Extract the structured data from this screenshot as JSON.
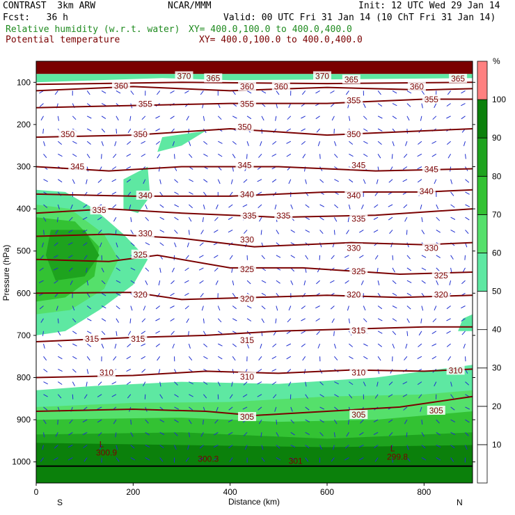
{
  "header": {
    "model": "CONTRAST  3km ARW",
    "org": "NCAR/MMM",
    "init": "Init: 12 UTC Wed 29 Jan 14",
    "fcst": "Fcst:   36 h",
    "valid": "Valid: 00 UTC Fri 31 Jan 14 (10 ChT Fri 31 Jan 14)",
    "field1_name": "Relative humidity (w.r.t. water)",
    "field1_xy": "XY= 400.0,100.0 to 400.0,400.0",
    "field2_name": "Potential temperature",
    "field2_xy": "XY= 400.0,100.0 to 400.0,400.0"
  },
  "colors": {
    "rh_levels": [
      "#5ee8a2",
      "#55e06b",
      "#33c233",
      "#1ea31e",
      "#0b800b",
      "#c9ffc9",
      "#ff8080"
    ],
    "isentrope": "#7a0000",
    "wind": "#1f2fd0",
    "top_band": "#7a0000"
  },
  "chart_data": {
    "type": "heatmap",
    "title": "",
    "xlabel": "Distance (km)",
    "ylabel": "Pressure (hPa)",
    "xlim": [
      0,
      900
    ],
    "ylim": [
      1050,
      50
    ],
    "x_ticks": [
      "0",
      "200",
      "400",
      "600",
      "800"
    ],
    "y_ticks": [
      "100",
      "200",
      "300",
      "400",
      "500",
      "600",
      "700",
      "800",
      "900",
      "1000"
    ],
    "x_end_labels": {
      "left": "S",
      "right": "N"
    },
    "colorbar": {
      "unit": "%",
      "levels": [
        "10",
        "20",
        "30",
        "40",
        "50",
        "60",
        "70",
        "80",
        "90",
        "100"
      ]
    },
    "rh_regions": [
      {
        "level": 50,
        "points": [
          [
            0,
            1050
          ],
          [
            0,
            830
          ],
          [
            120,
            820
          ],
          [
            300,
            810
          ],
          [
            500,
            815
          ],
          [
            700,
            800
          ],
          [
            900,
            770
          ],
          [
            900,
            1050
          ]
        ]
      },
      {
        "level": 60,
        "points": [
          [
            0,
            1050
          ],
          [
            0,
            870
          ],
          [
            200,
            860
          ],
          [
            400,
            858
          ],
          [
            600,
            845
          ],
          [
            800,
            840
          ],
          [
            900,
            830
          ],
          [
            900,
            1050
          ]
        ]
      },
      {
        "level": 70,
        "points": [
          [
            0,
            1050
          ],
          [
            0,
            900
          ],
          [
            300,
            895
          ],
          [
            500,
            905
          ],
          [
            700,
            900
          ],
          [
            900,
            880
          ],
          [
            900,
            1050
          ]
        ]
      },
      {
        "level": 80,
        "points": [
          [
            0,
            1050
          ],
          [
            0,
            935
          ],
          [
            300,
            930
          ],
          [
            600,
            945
          ],
          [
            900,
            930
          ],
          [
            900,
            1050
          ]
        ]
      },
      {
        "level": 90,
        "points": [
          [
            0,
            1050
          ],
          [
            0,
            955
          ],
          [
            300,
            960
          ],
          [
            600,
            965
          ],
          [
            900,
            960
          ],
          [
            900,
            1050
          ]
        ]
      },
      {
        "level": 50,
        "points": [
          [
            0,
            355
          ],
          [
            60,
            360
          ],
          [
            120,
            400
          ],
          [
            180,
            460
          ],
          [
            230,
            520
          ],
          [
            200,
            580
          ],
          [
            130,
            640
          ],
          [
            60,
            690
          ],
          [
            0,
            700
          ]
        ]
      },
      {
        "level": 60,
        "points": [
          [
            0,
            390
          ],
          [
            70,
            400
          ],
          [
            140,
            460
          ],
          [
            170,
            520
          ],
          [
            140,
            590
          ],
          [
            70,
            640
          ],
          [
            0,
            650
          ]
        ]
      },
      {
        "level": 70,
        "points": [
          [
            0,
            420
          ],
          [
            80,
            430
          ],
          [
            130,
            490
          ],
          [
            120,
            560
          ],
          [
            60,
            610
          ],
          [
            0,
            620
          ]
        ]
      },
      {
        "level": 80,
        "points": [
          [
            30,
            450
          ],
          [
            100,
            450
          ],
          [
            130,
            510
          ],
          [
            100,
            560
          ],
          [
            40,
            570
          ],
          [
            20,
            510
          ]
        ]
      },
      {
        "level": 50,
        "points": [
          [
            180,
            330
          ],
          [
            230,
            300
          ],
          [
            235,
            370
          ],
          [
            210,
            410
          ],
          [
            180,
            400
          ]
        ]
      },
      {
        "level": 50,
        "points": [
          [
            260,
            230
          ],
          [
            350,
            215
          ],
          [
            300,
            250
          ],
          [
            250,
            265
          ]
        ]
      },
      {
        "level": 50,
        "points": [
          [
            0,
            100
          ],
          [
            130,
            95
          ],
          [
            260,
            90
          ],
          [
            400,
            95
          ],
          [
            700,
            92
          ],
          [
            900,
            90
          ],
          [
            900,
            80
          ],
          [
            0,
            80
          ]
        ]
      },
      {
        "level": 50,
        "points": [
          [
            880,
            660
          ],
          [
            900,
            650
          ],
          [
            900,
            690
          ],
          [
            870,
            690
          ]
        ]
      }
    ],
    "isentropes": [
      {
        "theta": 305,
        "points": [
          [
            0,
            880
          ],
          [
            200,
            875
          ],
          [
            350,
            880
          ],
          [
            450,
            890
          ],
          [
            600,
            880
          ],
          [
            750,
            870
          ],
          [
            900,
            845
          ]
        ]
      },
      {
        "theta": 310,
        "points": [
          [
            0,
            800
          ],
          [
            200,
            795
          ],
          [
            350,
            785
          ],
          [
            500,
            790
          ],
          [
            650,
            782
          ],
          [
            800,
            785
          ],
          [
            900,
            780
          ]
        ]
      },
      {
        "theta": 315,
        "points": [
          [
            0,
            715
          ],
          [
            200,
            705
          ],
          [
            350,
            700
          ],
          [
            500,
            690
          ],
          [
            650,
            685
          ],
          [
            800,
            680
          ],
          [
            900,
            680
          ]
        ]
      },
      {
        "theta": 320,
        "points": [
          [
            0,
            600
          ],
          [
            200,
            598
          ],
          [
            300,
            615
          ],
          [
            450,
            610
          ],
          [
            600,
            605
          ],
          [
            750,
            610
          ],
          [
            900,
            605
          ]
        ]
      },
      {
        "theta": 325,
        "points": [
          [
            0,
            520
          ],
          [
            150,
            525
          ],
          [
            250,
            510
          ],
          [
            400,
            540
          ],
          [
            550,
            540
          ],
          [
            750,
            555
          ],
          [
            900,
            550
          ]
        ]
      },
      {
        "theta": 330,
        "points": [
          [
            0,
            465
          ],
          [
            150,
            460
          ],
          [
            300,
            470
          ],
          [
            450,
            490
          ],
          [
            650,
            480
          ],
          [
            800,
            485
          ],
          [
            900,
            480
          ]
        ]
      },
      {
        "theta": 335,
        "points": [
          [
            0,
            410
          ],
          [
            150,
            400
          ],
          [
            300,
            410
          ],
          [
            500,
            420
          ],
          [
            700,
            415
          ],
          [
            900,
            400
          ]
        ]
      },
      {
        "theta": 340,
        "points": [
          [
            0,
            365
          ],
          [
            200,
            370
          ],
          [
            400,
            370
          ],
          [
            600,
            360
          ],
          [
            800,
            360
          ],
          [
            900,
            355
          ]
        ]
      },
      {
        "theta": 345,
        "points": [
          [
            0,
            300
          ],
          [
            150,
            310
          ],
          [
            300,
            300
          ],
          [
            500,
            300
          ],
          [
            700,
            310
          ],
          [
            900,
            305
          ]
        ]
      },
      {
        "theta": 350,
        "points": [
          [
            0,
            230
          ],
          [
            200,
            225
          ],
          [
            400,
            210
          ],
          [
            600,
            225
          ],
          [
            800,
            215
          ],
          [
            900,
            210
          ]
        ]
      },
      {
        "theta": 355,
        "points": [
          [
            0,
            160
          ],
          [
            200,
            155
          ],
          [
            400,
            150
          ],
          [
            600,
            150
          ],
          [
            800,
            140
          ],
          [
            900,
            140
          ]
        ]
      },
      {
        "theta": 360,
        "points": [
          [
            0,
            120
          ],
          [
            200,
            110
          ],
          [
            400,
            120
          ],
          [
            600,
            112
          ],
          [
            800,
            118
          ],
          [
            900,
            115
          ]
        ]
      },
      {
        "theta": 365,
        "points": [
          [
            0,
            105
          ],
          [
            300,
            100
          ],
          [
            600,
            103
          ],
          [
            900,
            100
          ]
        ]
      }
    ],
    "isentrope_labels": [
      {
        "text": "370",
        "x": 305,
        "p": 87
      },
      {
        "text": "365",
        "x": 365,
        "p": 92
      },
      {
        "text": "370",
        "x": 590,
        "p": 87
      },
      {
        "text": "365",
        "x": 650,
        "p": 95
      },
      {
        "text": "365",
        "x": 870,
        "p": 93
      },
      {
        "text": "360",
        "x": 175,
        "p": 110
      },
      {
        "text": "360",
        "x": 435,
        "p": 112
      },
      {
        "text": "360",
        "x": 505,
        "p": 112
      },
      {
        "text": "360",
        "x": 785,
        "p": 112
      },
      {
        "text": "355",
        "x": 225,
        "p": 153
      },
      {
        "text": "355",
        "x": 435,
        "p": 153
      },
      {
        "text": "355",
        "x": 655,
        "p": 145
      },
      {
        "text": "355",
        "x": 815,
        "p": 142
      },
      {
        "text": "350",
        "x": 65,
        "p": 225
      },
      {
        "text": "350",
        "x": 215,
        "p": 225
      },
      {
        "text": "350",
        "x": 430,
        "p": 208
      },
      {
        "text": "350",
        "x": 655,
        "p": 225
      },
      {
        "text": "345",
        "x": 85,
        "p": 302
      },
      {
        "text": "345",
        "x": 430,
        "p": 298
      },
      {
        "text": "345",
        "x": 665,
        "p": 298
      },
      {
        "text": "345",
        "x": 815,
        "p": 308
      },
      {
        "text": "340",
        "x": 225,
        "p": 370
      },
      {
        "text": "340",
        "x": 435,
        "p": 368
      },
      {
        "text": "340",
        "x": 655,
        "p": 370
      },
      {
        "text": "340",
        "x": 805,
        "p": 360
      },
      {
        "text": "335",
        "x": 130,
        "p": 405
      },
      {
        "text": "335",
        "x": 440,
        "p": 418
      },
      {
        "text": "335",
        "x": 510,
        "p": 418
      },
      {
        "text": "335",
        "x": 665,
        "p": 425
      },
      {
        "text": "330",
        "x": 225,
        "p": 460
      },
      {
        "text": "330",
        "x": 435,
        "p": 475
      },
      {
        "text": "330",
        "x": 655,
        "p": 495
      },
      {
        "text": "330",
        "x": 815,
        "p": 495
      },
      {
        "text": "325",
        "x": 215,
        "p": 510
      },
      {
        "text": "325",
        "x": 435,
        "p": 545
      },
      {
        "text": "325",
        "x": 665,
        "p": 550
      },
      {
        "text": "325",
        "x": 835,
        "p": 560
      },
      {
        "text": "320",
        "x": 215,
        "p": 605
      },
      {
        "text": "320",
        "x": 435,
        "p": 615
      },
      {
        "text": "320",
        "x": 655,
        "p": 605
      },
      {
        "text": "320",
        "x": 835,
        "p": 605
      },
      {
        "text": "315",
        "x": 115,
        "p": 710
      },
      {
        "text": "315",
        "x": 210,
        "p": 710
      },
      {
        "text": "315",
        "x": 435,
        "p": 713
      },
      {
        "text": "315",
        "x": 665,
        "p": 690
      },
      {
        "text": "310",
        "x": 145,
        "p": 790
      },
      {
        "text": "310",
        "x": 435,
        "p": 800
      },
      {
        "text": "310",
        "x": 665,
        "p": 790
      },
      {
        "text": "310",
        "x": 865,
        "p": 785
      },
      {
        "text": "305",
        "x": 435,
        "p": 895
      },
      {
        "text": "305",
        "x": 665,
        "p": 890
      },
      {
        "text": "305",
        "x": 825,
        "p": 880
      }
    ],
    "surface_labels": [
      {
        "text": "L",
        "x": 135,
        "p": 965
      },
      {
        "text": "300.9",
        "x": 145,
        "p": 985
      },
      {
        "text": "300.3",
        "x": 355,
        "p": 1000
      },
      {
        "text": "301",
        "x": 535,
        "p": 1005
      },
      {
        "text": "L",
        "x": 735,
        "p": 975
      },
      {
        "text": "299.8",
        "x": 745,
        "p": 995
      }
    ]
  }
}
